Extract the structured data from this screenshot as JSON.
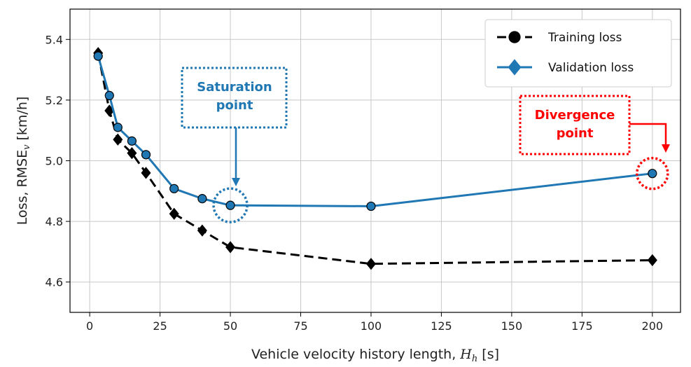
{
  "chart_data": {
    "type": "line",
    "xlabel": "Vehicle velocity history length, H_h [s]",
    "xlabel_parts": {
      "main": "Vehicle velocity history length, ",
      "var": "H",
      "sub": "h",
      "unit": " [s]"
    },
    "ylabel": "Loss, RMSE_v [km/h]",
    "ylabel_parts": {
      "main": "Loss, RMSE",
      "sub": "v",
      "unit": " [km/h]"
    },
    "xlim": [
      -7,
      210
    ],
    "ylim": [
      4.5,
      5.5
    ],
    "xticks": [
      0,
      25,
      50,
      75,
      100,
      125,
      150,
      175,
      200
    ],
    "yticks": [
      4.6,
      4.8,
      5.0,
      5.2,
      5.4
    ],
    "grid": true,
    "legend_position": "top-right",
    "series": [
      {
        "name": "Training loss",
        "color": "#000000",
        "line_style": "dashed",
        "marker": "diamond",
        "x": [
          3,
          7,
          10,
          15,
          20,
          30,
          40,
          50,
          100,
          200
        ],
        "y": [
          5.355,
          5.165,
          5.07,
          5.025,
          4.96,
          4.825,
          4.77,
          4.715,
          4.66,
          4.672
        ]
      },
      {
        "name": "Validation loss",
        "color": "#1f77b4",
        "line_style": "solid",
        "marker": "circle",
        "x": [
          3,
          7,
          10,
          15,
          20,
          30,
          40,
          50,
          100,
          200
        ],
        "y": [
          5.345,
          5.215,
          5.11,
          5.065,
          5.02,
          4.908,
          4.875,
          4.853,
          4.85,
          4.958
        ]
      }
    ],
    "legend_markers": [
      {
        "name": "Training loss",
        "marker": "circle",
        "color": "#000000"
      },
      {
        "name": "Validation loss",
        "marker": "diamond",
        "color": "#1f77b4"
      }
    ],
    "annotations": [
      {
        "lines": [
          "Saturation",
          "point"
        ],
        "color": "#1f77b4",
        "target_x": 50,
        "target_y": 4.853
      },
      {
        "lines": [
          "Divergence",
          "point"
        ],
        "color": "#ff0000",
        "target_x": 200,
        "target_y": 4.958
      }
    ]
  }
}
